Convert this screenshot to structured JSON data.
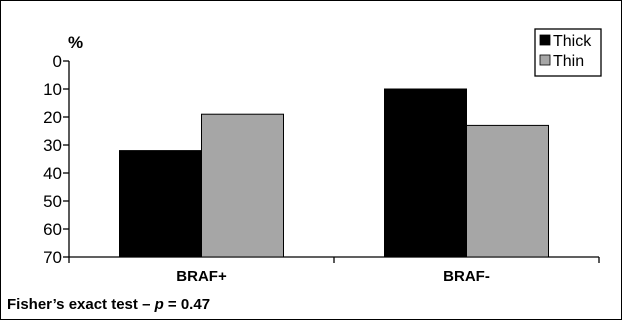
{
  "chart_data": {
    "type": "bar",
    "title": "",
    "ylabel": "%",
    "xlabel": "",
    "ylim": [
      0,
      70
    ],
    "y_inverted": true,
    "yticks": [
      0,
      10,
      20,
      30,
      40,
      50,
      60,
      70
    ],
    "categories": [
      "BRAF+",
      "BRAF-"
    ],
    "series": [
      {
        "name": "Thick",
        "values": [
          32,
          10
        ],
        "color": "#000000"
      },
      {
        "name": "Thin",
        "values": [
          19,
          23
        ],
        "color": "#a6a6a6"
      }
    ],
    "legend_position": "top-right",
    "grid": false
  },
  "footnote": {
    "prefix": "Fisher’s exact test – ",
    "p_symbol": "p",
    "suffix": " = 0.47"
  }
}
